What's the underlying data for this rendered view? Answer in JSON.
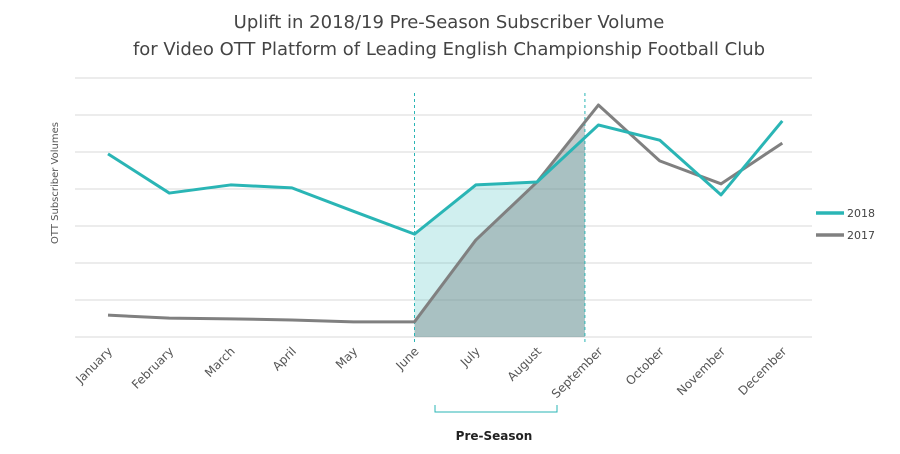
{
  "chart_data": {
    "type": "line",
    "title": [
      "Uplift in 2018/19 Pre-Season Subscriber Volume",
      "for Video OTT Platform of Leading English Championship Football Club"
    ],
    "xlabel": "",
    "ylabel": "OTT Subscriber Volumes",
    "ylim": [
      0,
      7
    ],
    "grid": true,
    "legend_position": "right",
    "categories": [
      "January",
      "February",
      "March",
      "April",
      "May",
      "June",
      "July",
      "August",
      "September",
      "October",
      "November",
      "December"
    ],
    "series": [
      {
        "name": "2018",
        "color": "#2ab5b5",
        "values": [
          4.95,
          3.89,
          4.11,
          4.03,
          3.4,
          2.78,
          4.11,
          4.19,
          5.73,
          5.32,
          3.84,
          5.84
        ]
      },
      {
        "name": "2017",
        "color": "#808080",
        "values": [
          0.59,
          0.51,
          0.49,
          0.46,
          0.41,
          0.41,
          2.62,
          4.19,
          6.27,
          4.76,
          4.14,
          5.24
        ]
      }
    ],
    "annotation": {
      "label": "Pre-Season",
      "start_index": 5,
      "end_index": 7.78
    }
  }
}
